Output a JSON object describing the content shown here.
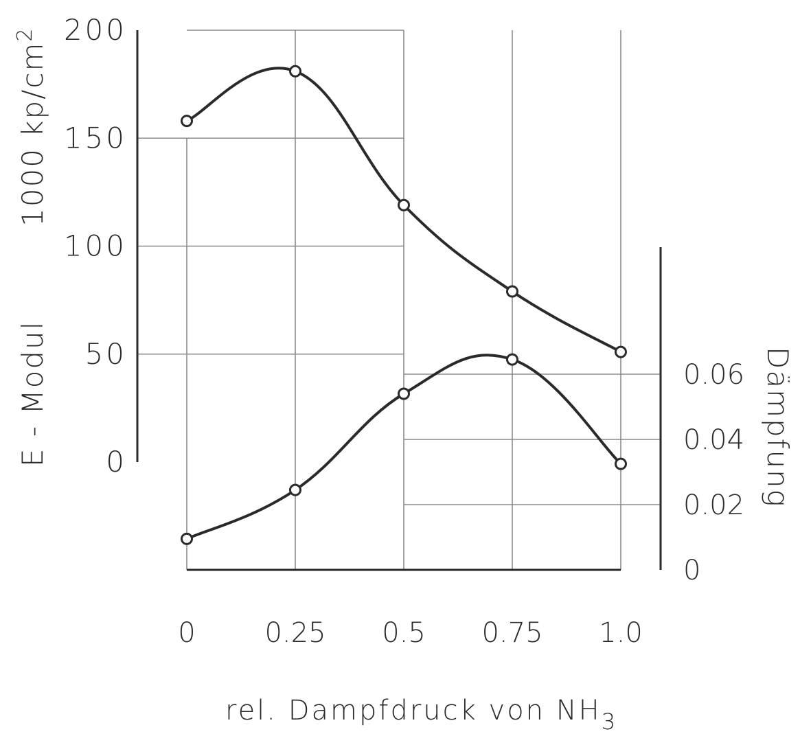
{
  "chart_data": {
    "type": "line",
    "xlabel": "rel. Dampfdruck von NH",
    "xlabel_sub": "3",
    "x_ticks": [
      "0",
      "0.25",
      "0.5",
      "0.75",
      "1.0"
    ],
    "x_tick_values": [
      0,
      0.25,
      0.5,
      0.75,
      1.0
    ],
    "xlim": [
      0,
      1.0
    ],
    "y_left": {
      "label_line1": "1000 kp/cm",
      "label_sup": "2",
      "label_line2": "E - Modul",
      "ticks": [
        "200",
        "150",
        "100",
        "50",
        "0"
      ],
      "tick_values": [
        200,
        150,
        100,
        50,
        0
      ],
      "range": [
        0,
        200
      ]
    },
    "y_right": {
      "label": "Dämpfung",
      "ticks": [
        "0.06",
        "0.04",
        "0.02",
        "0"
      ],
      "tick_values": [
        0.06,
        0.04,
        0.02,
        0
      ],
      "range": [
        0,
        0.1
      ]
    },
    "grid": true,
    "series": [
      {
        "axis": "left",
        "x": [
          0,
          0.25,
          0.5,
          0.75,
          1.0
        ],
        "values": [
          158,
          181,
          119,
          79,
          51
        ]
      },
      {
        "axis": "right",
        "x": [
          0,
          0.25,
          0.5,
          0.75,
          1.0
        ],
        "values": [
          0.0095,
          0.0245,
          0.054,
          0.0645,
          0.0325
        ]
      }
    ],
    "colors": {
      "line": "#2a2a2a",
      "grid": "#8a8a8a"
    }
  }
}
